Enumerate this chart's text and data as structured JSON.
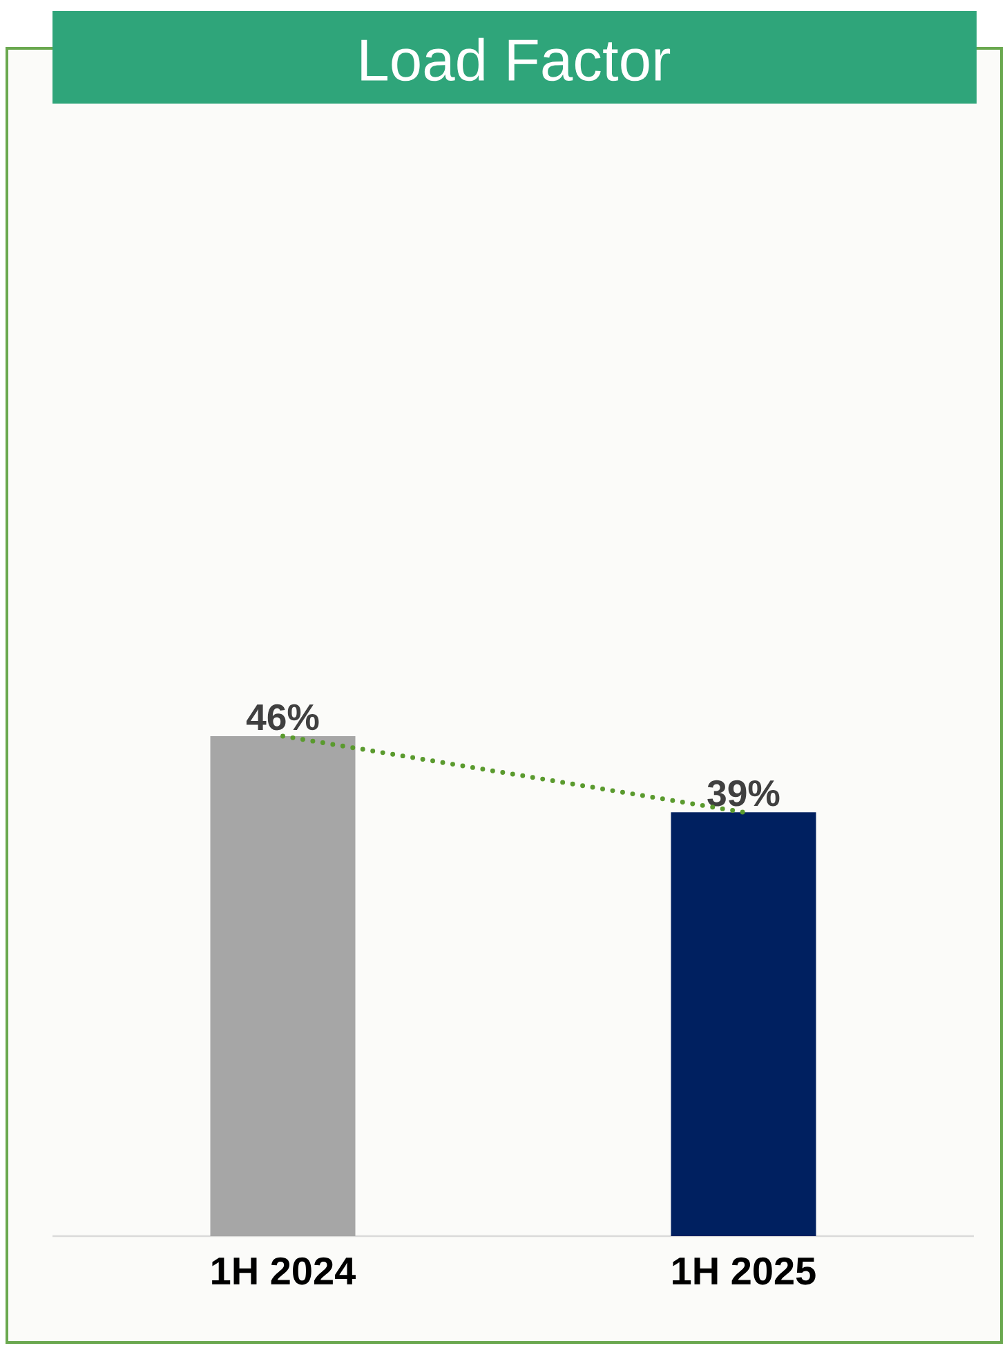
{
  "chart_data": {
    "type": "bar",
    "title": "Load Factor",
    "categories": [
      "1H 2024",
      "1H 2025"
    ],
    "series": [
      {
        "colors": [
          "#a6a6a6",
          "#002060"
        ],
        "values": [
          46,
          39
        ],
        "value_labels": [
          "46%",
          "39%"
        ]
      },
      {
        "type": "line",
        "color": "#5a9a2e",
        "values": [
          46,
          39
        ],
        "line_style": "dotted",
        "marker": "none"
      }
    ],
    "tick_labels": "x"
  }
}
